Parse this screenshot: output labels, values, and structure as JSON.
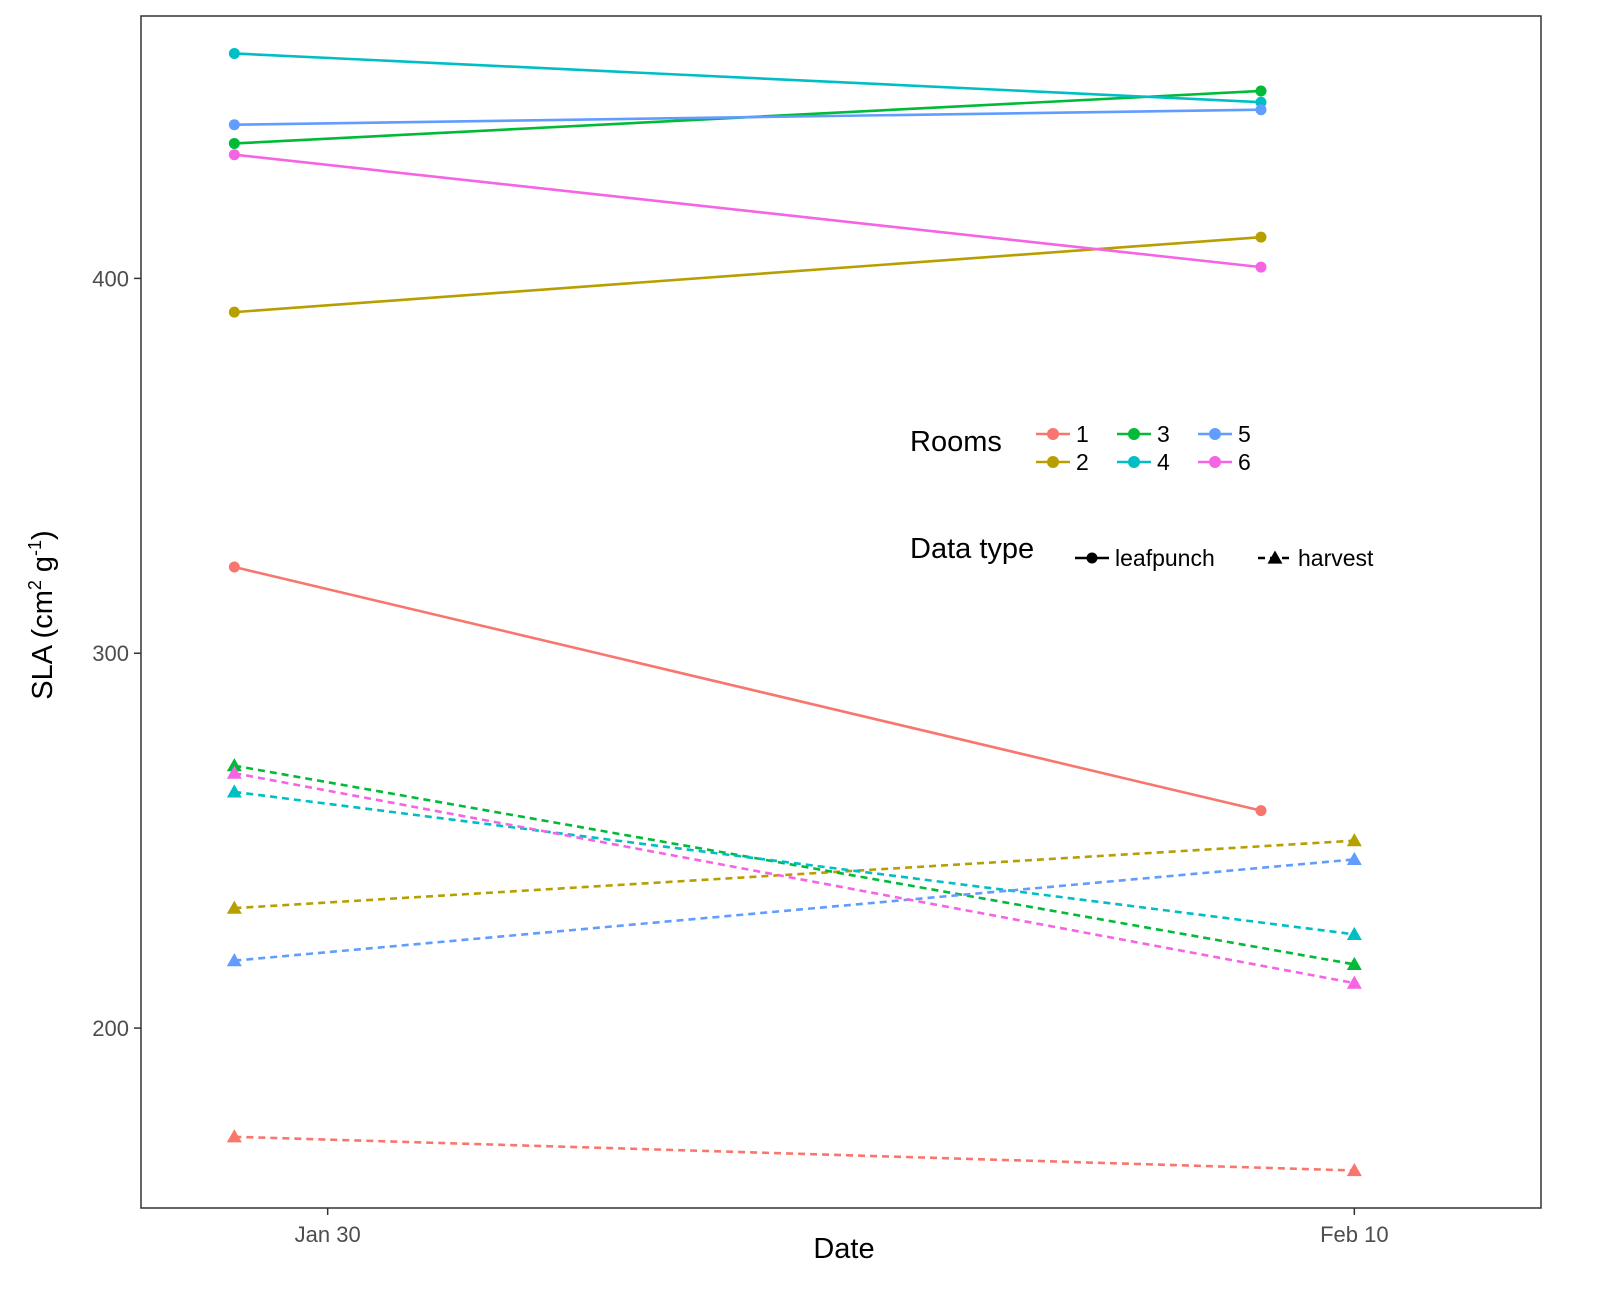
{
  "chart_data": {
    "type": "line",
    "xlabel": "Date",
    "ylabel": "SLA (cm",
    "ylabel_sup1": "2",
    "ylabel_mid": " g",
    "ylabel_sup2": "-1",
    "ylabel_end": ")",
    "x_ticks": [
      "Jan 30",
      "Feb 10"
    ],
    "y_ticks": [
      200,
      300,
      400
    ],
    "xlim": [
      "2016-01-28",
      "2016-02-12"
    ],
    "ylim": [
      152,
      470
    ],
    "grid": false,
    "legend": {
      "placement": "inside-right",
      "rooms_title": "Rooms",
      "rooms": [
        {
          "label": "1",
          "color": "#F8766D"
        },
        {
          "label": "2",
          "color": "#B79F00"
        },
        {
          "label": "3",
          "color": "#00BA38"
        },
        {
          "label": "4",
          "color": "#00BFC4"
        },
        {
          "label": "5",
          "color": "#619CFF"
        },
        {
          "label": "6",
          "color": "#F564E3"
        }
      ],
      "type_title": "Data type",
      "types": [
        {
          "label": "leafpunch",
          "line": "solid",
          "marker": "circle"
        },
        {
          "label": "harvest",
          "line": "dashed",
          "marker": "triangle"
        }
      ]
    },
    "series": [
      {
        "room": "1",
        "type": "leafpunch",
        "color": "#F8766D",
        "x": [
          "2016-01-29",
          "2016-02-09"
        ],
        "y": [
          323,
          258
        ]
      },
      {
        "room": "2",
        "type": "leafpunch",
        "color": "#B79F00",
        "x": [
          "2016-01-29",
          "2016-02-09"
        ],
        "y": [
          391,
          411
        ]
      },
      {
        "room": "3",
        "type": "leafpunch",
        "color": "#00BA38",
        "x": [
          "2016-01-29",
          "2016-02-09"
        ],
        "y": [
          436,
          450
        ]
      },
      {
        "room": "4",
        "type": "leafpunch",
        "color": "#00BFC4",
        "x": [
          "2016-01-29",
          "2016-02-09"
        ],
        "y": [
          460,
          447
        ]
      },
      {
        "room": "5",
        "type": "leafpunch",
        "color": "#619CFF",
        "x": [
          "2016-01-29",
          "2016-02-09"
        ],
        "y": [
          441,
          445
        ]
      },
      {
        "room": "6",
        "type": "leafpunch",
        "color": "#F564E3",
        "x": [
          "2016-01-29",
          "2016-02-09"
        ],
        "y": [
          433,
          403
        ]
      },
      {
        "room": "1",
        "type": "harvest",
        "color": "#F8766D",
        "x": [
          "2016-01-29",
          "2016-02-10"
        ],
        "y": [
          171,
          162
        ]
      },
      {
        "room": "2",
        "type": "harvest",
        "color": "#B79F00",
        "x": [
          "2016-01-29",
          "2016-02-10"
        ],
        "y": [
          232,
          250
        ]
      },
      {
        "room": "3",
        "type": "harvest",
        "color": "#00BA38",
        "x": [
          "2016-01-29",
          "2016-02-10"
        ],
        "y": [
          270,
          217
        ]
      },
      {
        "room": "4",
        "type": "harvest",
        "color": "#00BFC4",
        "x": [
          "2016-01-29",
          "2016-02-10"
        ],
        "y": [
          263,
          225
        ]
      },
      {
        "room": "5",
        "type": "harvest",
        "color": "#619CFF",
        "x": [
          "2016-01-29",
          "2016-02-10"
        ],
        "y": [
          218,
          245
        ]
      },
      {
        "room": "6",
        "type": "harvest",
        "color": "#F564E3",
        "x": [
          "2016-01-29",
          "2016-02-10"
        ],
        "y": [
          268,
          212
        ]
      }
    ]
  }
}
